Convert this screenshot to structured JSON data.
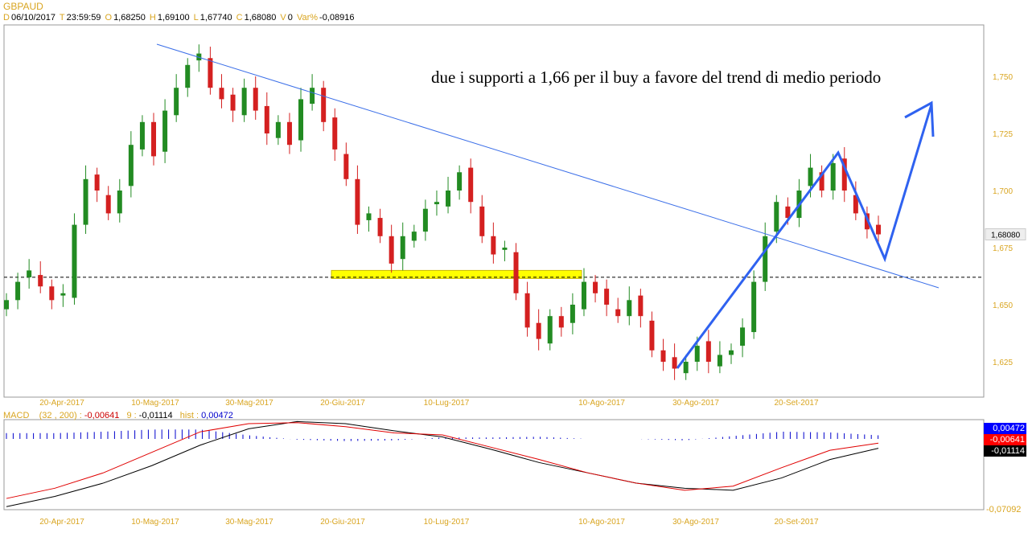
{
  "header": {
    "symbol": "GBPAUD",
    "d_label": "D",
    "date": "06/10/2017",
    "t_label": "T",
    "time": "23:59:59",
    "o_label": "O",
    "open": "1,68250",
    "h_label": "H",
    "high": "1,69100",
    "l_label": "L",
    "low": "1,67740",
    "c_label": "C",
    "close": "1,68080",
    "v_label": "V",
    "volume": "0",
    "var_label": "Var%",
    "var": "-0,08916"
  },
  "annotation": "due i supporti a 1,66 per il buy a favore del trend di medio periodo",
  "price_axis": {
    "ticks": [
      "1,750",
      "1,725",
      "1,700",
      "1,675",
      "1,650",
      "1,625"
    ],
    "tick_values": [
      1.75,
      1.725,
      1.7,
      1.675,
      1.65,
      1.625
    ],
    "last_price": "1,68080",
    "last_value": 1.6808,
    "support": 1.662
  },
  "date_labels": [
    "20-Apr-2017",
    "10-Mag-2017",
    "30-Mag-2017",
    "20-Giu-2017",
    "10-Lug-2017",
    "10-Ago-2017",
    "30-Ago-2017",
    "20-Set-2017"
  ],
  "closes": [
    1.652,
    1.66,
    1.665,
    1.658,
    1.652,
    1.655,
    1.685,
    1.705,
    1.7,
    1.69,
    1.7,
    1.72,
    1.73,
    1.715,
    1.735,
    1.745,
    1.755,
    1.76,
    1.745,
    1.74,
    1.735,
    1.745,
    1.735,
    1.725,
    1.73,
    1.72,
    1.74,
    1.745,
    1.73,
    1.718,
    1.705,
    1.685,
    1.69,
    1.68,
    1.668,
    1.68,
    1.682,
    1.692,
    1.695,
    1.7,
    1.708,
    1.695,
    1.68,
    1.672,
    1.675,
    1.655,
    1.64,
    1.635,
    1.645,
    1.64,
    1.65,
    1.66,
    1.655,
    1.65,
    1.645,
    1.652,
    1.645,
    1.63,
    1.625,
    1.622,
    1.625,
    1.632,
    1.625,
    1.628,
    1.63,
    1.64,
    1.66,
    1.68,
    1.695,
    1.688,
    1.7,
    1.71,
    1.7,
    1.712,
    1.7,
    1.69,
    1.683,
    1.6808
  ],
  "colors": {
    "up": "#228b22",
    "down": "#d42020",
    "trend": "#3a6ee8",
    "annot": "#2f62f0",
    "support_zone": "#ffff00"
  },
  "macd": {
    "label": "MACD",
    "params": "(32 , 200) :",
    "macd_value": "-0,00641",
    "signal_label": "9 :",
    "signal_value": "-0,01114",
    "hist_label": "hist :",
    "hist_value": "0,00472",
    "axis_bottom": "-0,07092",
    "range": [
      -0.07092,
      0.0169
    ],
    "macd_series": [
      -0.06,
      -0.05,
      -0.035,
      -0.015,
      0.005,
      0.013,
      0.014,
      0.01,
      0.004,
      0.002,
      -0.01,
      -0.022,
      -0.035,
      -0.045,
      -0.052,
      -0.048,
      -0.03,
      -0.013,
      -0.006
    ],
    "signal_series": [
      -0.068,
      -0.058,
      -0.045,
      -0.028,
      -0.008,
      0.008,
      0.015,
      0.013,
      0.006,
      0.0,
      -0.012,
      -0.025,
      -0.035,
      -0.045,
      -0.05,
      -0.052,
      -0.04,
      -0.022,
      -0.011
    ]
  }
}
